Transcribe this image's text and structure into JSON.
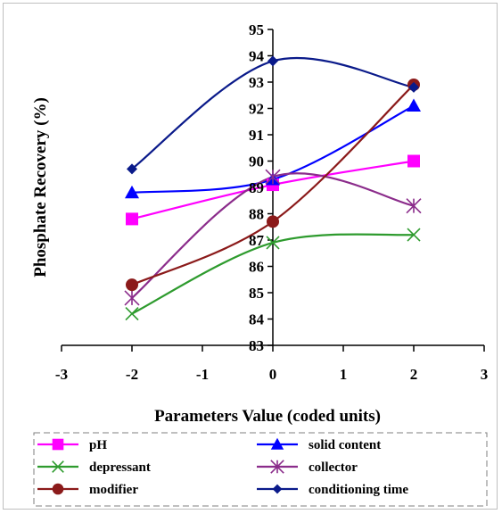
{
  "chart_data": {
    "type": "line",
    "title": "",
    "xlabel": "Parameters Value (coded units)",
    "ylabel": "Phosphate Recovery (%)",
    "xlim": [
      -3,
      3
    ],
    "ylim": [
      83,
      95
    ],
    "x_ticks": [
      "-3",
      "-2",
      "-1",
      "0",
      "1",
      "2",
      "3"
    ],
    "y_ticks": [
      "83",
      "84",
      "85",
      "86",
      "87",
      "88",
      "89",
      "90",
      "91",
      "92",
      "93",
      "94",
      "95"
    ],
    "x": [
      -2,
      0,
      2
    ],
    "grid": false,
    "legend_position": "bottom",
    "series": [
      {
        "name": "pH",
        "values": [
          87.8,
          89.1,
          90.0
        ],
        "color": "#ff00ff",
        "marker": "square"
      },
      {
        "name": "solid content",
        "values": [
          88.8,
          89.3,
          92.1
        ],
        "color": "#0000ff",
        "marker": "triangle"
      },
      {
        "name": "depressant",
        "values": [
          84.2,
          86.9,
          87.2
        ],
        "color": "#2e9b2e",
        "marker": "x"
      },
      {
        "name": "collector",
        "values": [
          84.8,
          89.4,
          88.3
        ],
        "color": "#8b2c8b",
        "marker": "star"
      },
      {
        "name": "modifier",
        "values": [
          85.3,
          87.7,
          92.9
        ],
        "color": "#8b1a1a",
        "marker": "circle"
      },
      {
        "name": "conditioning time",
        "values": [
          89.7,
          93.8,
          92.8
        ],
        "color": "#0a1a8a",
        "marker": "diamond"
      }
    ]
  }
}
